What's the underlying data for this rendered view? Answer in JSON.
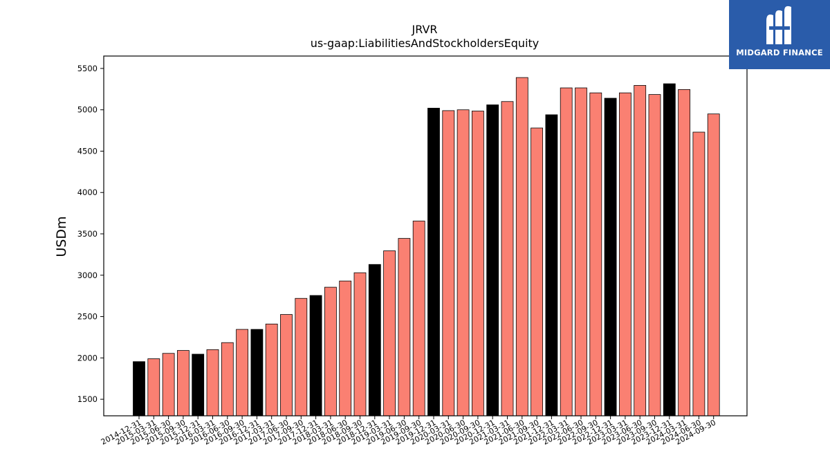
{
  "chart_data": {
    "type": "bar",
    "title": "JRVR",
    "subtitle": "us-gaap:LiabilitiesAndStockholdersEquity",
    "xlabel": "",
    "ylabel": "USDm",
    "ylim": [
      1300,
      5650
    ],
    "yticks": [
      1500,
      2000,
      2500,
      3000,
      3500,
      4000,
      4500,
      5000,
      5500
    ],
    "grid": false,
    "colors": {
      "annual": "#000000",
      "quarterly": "#fa8072",
      "edge": "#000000"
    },
    "categories": [
      "2014-12-31",
      "2015-03-31",
      "2015-06-30",
      "2015-09-30",
      "2015-12-31",
      "2016-03-31",
      "2016-06-30",
      "2016-09-30",
      "2016-12-31",
      "2017-03-31",
      "2017-06-30",
      "2017-09-30",
      "2017-12-31",
      "2018-03-31",
      "2018-06-30",
      "2018-09-30",
      "2018-12-31",
      "2019-03-31",
      "2019-06-30",
      "2019-09-30",
      "2019-12-31",
      "2020-03-31",
      "2020-06-30",
      "2020-09-30",
      "2020-12-31",
      "2021-03-31",
      "2021-06-30",
      "2021-09-30",
      "2021-12-31",
      "2022-03-31",
      "2022-06-30",
      "2022-09-30",
      "2022-12-31",
      "2023-03-31",
      "2023-06-30",
      "2023-09-30",
      "2023-12-31",
      "2024-03-31",
      "2024-06-30",
      "2024-09-30"
    ],
    "values": [
      1955,
      1990,
      2055,
      2090,
      2045,
      2100,
      2185,
      2345,
      2345,
      2410,
      2525,
      2720,
      2755,
      2855,
      2930,
      3030,
      3130,
      3295,
      3445,
      3655,
      5020,
      4990,
      5000,
      4985,
      5060,
      5100,
      5390,
      4780,
      4940,
      5265,
      5265,
      5205,
      5140,
      5205,
      5295,
      5185,
      5315,
      5245,
      4730,
      4950
    ],
    "annual_flags": [
      true,
      false,
      false,
      false,
      true,
      false,
      false,
      false,
      true,
      false,
      false,
      false,
      true,
      false,
      false,
      false,
      true,
      false,
      false,
      false,
      true,
      false,
      false,
      false,
      true,
      false,
      false,
      false,
      true,
      false,
      false,
      false,
      true,
      false,
      false,
      false,
      true,
      false,
      false,
      false
    ]
  },
  "logo": {
    "text": "MIDGARD FINANCE",
    "icon": "midgard-logo-icon",
    "background": "#2a5caa"
  }
}
